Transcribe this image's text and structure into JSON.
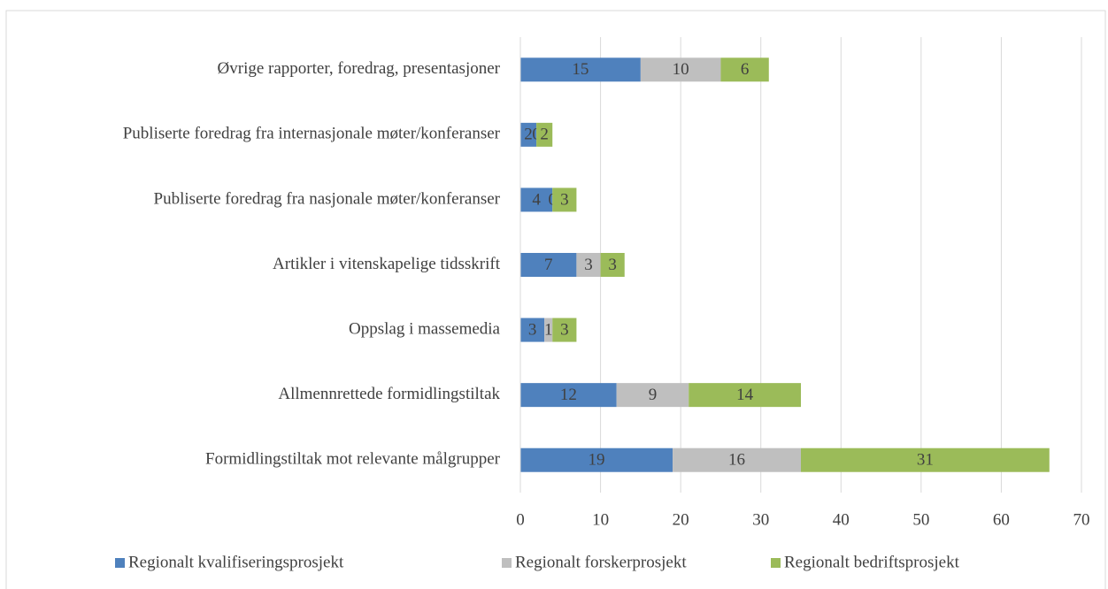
{
  "chart_data": {
    "type": "bar",
    "orientation": "horizontal",
    "stacked": true,
    "categories": [
      "Øvrige rapporter, foredrag, presentasjoner",
      "Publiserte foredrag fra internasjonale møter/konferanser",
      "Publiserte foredrag fra nasjonale møter/konferanser",
      "Artikler i vitenskapelige tidsskrift",
      "Oppslag i massemedia",
      "Allmennrettede formidlingstiltak",
      "Formidlingstiltak mot relevante målgrupper"
    ],
    "series": [
      {
        "name": "Regionalt kvalifiseringsprosjekt",
        "color": "#4f81bd",
        "values": [
          15,
          2,
          4,
          7,
          3,
          12,
          19
        ]
      },
      {
        "name": "Regionalt forskerprosjekt",
        "color": "#bfbfbf",
        "values": [
          10,
          0,
          0,
          3,
          1,
          9,
          16
        ]
      },
      {
        "name": "Regionalt bedriftsprosjekt",
        "color": "#9bbb59",
        "values": [
          6,
          2,
          3,
          3,
          3,
          14,
          31
        ]
      }
    ],
    "xlim": [
      0,
      70
    ],
    "xticks": [
      0,
      10,
      20,
      30,
      40,
      50,
      60,
      70
    ],
    "grid": true,
    "legend": "bottom"
  }
}
